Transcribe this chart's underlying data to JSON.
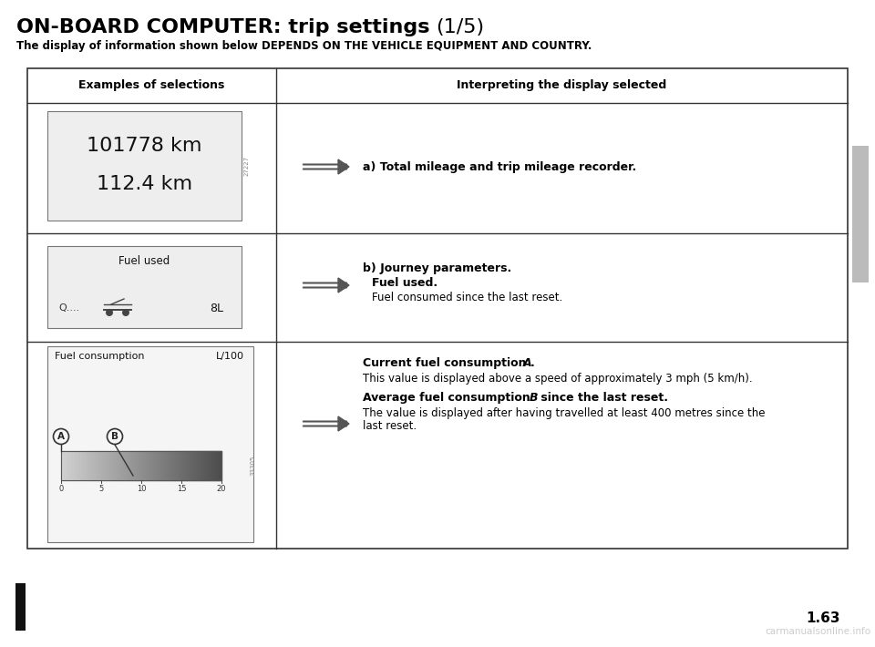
{
  "title_bold": "ON-BOARD COMPUTER: trip settings ",
  "title_normal": "(1/5)",
  "subtitle": "The display of information shown below DEPENDS ON THE VEHICLE EQUIPMENT AND COUNTRY.",
  "col1_header": "Examples of selections",
  "col2_header": "Interpreting the display selected",
  "mileage_line1": "101778 km",
  "mileage_line2": "112.4 km",
  "fuel_used_label": "Fuel used",
  "fuel_used_value": "8L",
  "fuel_cons_label": "Fuel consumption",
  "fuel_cons_unit": "L/100",
  "gauge_ticks": [
    "0",
    "5",
    "10",
    "15",
    "20"
  ],
  "img_number1": "27227",
  "img_number2": "33305",
  "row1_text": "a) Total mileage and trip mileage recorder.",
  "row2_line1_bold": "b) Journey parameters.",
  "row2_line2_bold": "   Fuel used.",
  "row2_line3": "   Fuel consumed since the last reset.",
  "row3_text1_part1": "Current fuel consumption ",
  "row3_text1_italic": "A",
  "row3_text1_rest": ".",
  "row3_text1_normal": "This value is displayed above a speed of approximately 3 mph (5 km/h).",
  "row3_text2_part1": "Average fuel consumption ",
  "row3_text2_italic": "B",
  "row3_text2_rest": " since the last reset.",
  "row3_text2_normal1": "The value is displayed after having travelled at least 400 metres since the",
  "row3_text2_normal2": "last reset.",
  "bg_color": "#ffffff",
  "text_color": "#000000",
  "page_number": "1.63",
  "watermark": "carmanualsonline.info",
  "sidebar_color": "#bbbbbb"
}
